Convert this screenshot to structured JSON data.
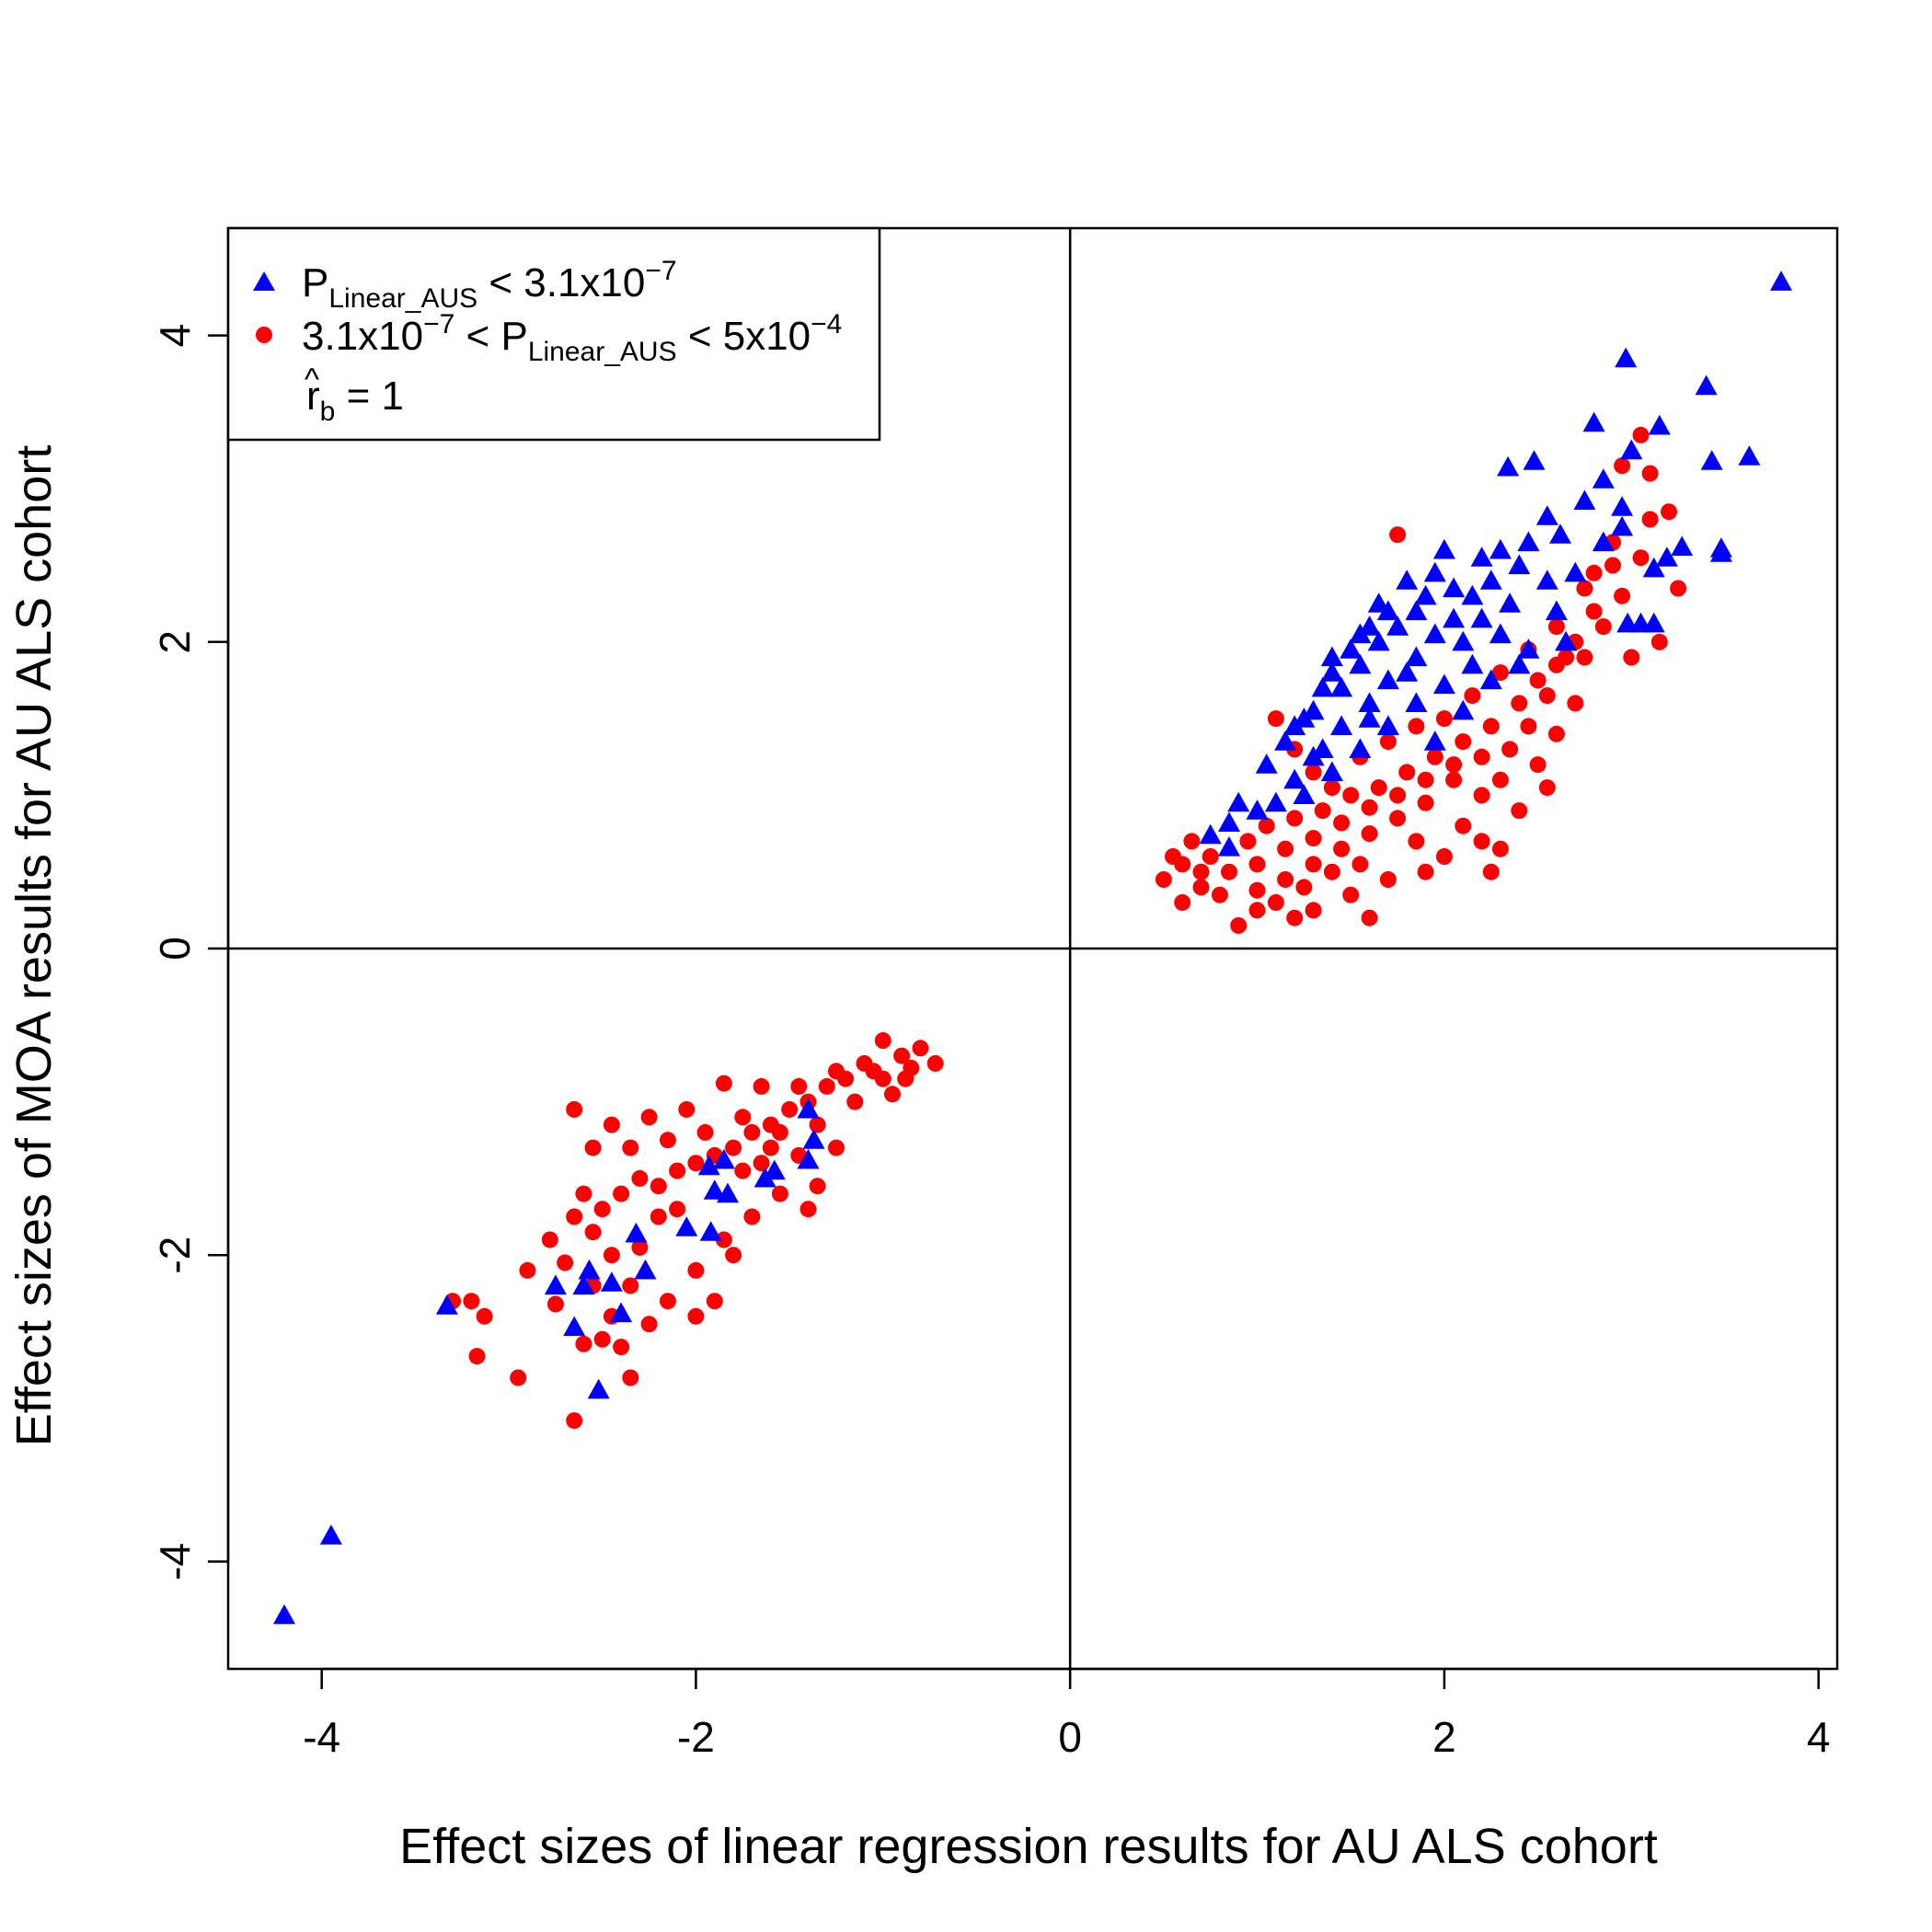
{
  "chart_data": {
    "type": "scatter",
    "xlabel": "Effect sizes of linear regression results for AU ALS cohort",
    "ylabel": "Effect sizes of MOA results for AU ALS cohort",
    "xlim": [
      -4.5,
      4.1
    ],
    "ylim": [
      -4.7,
      4.7
    ],
    "x_ticks": [
      "-4",
      "-2",
      "0",
      "2",
      "4"
    ],
    "y_ticks": [
      "-4",
      "-2",
      "0",
      "2",
      "4"
    ],
    "reference_lines": {
      "x": 0,
      "y": 0
    },
    "grid": false,
    "legend_position": "top-left",
    "legend": {
      "entry1": {
        "base": "P",
        "sub": "Linear_AUS",
        "rest": " < 3.1x10",
        "sup": "−7"
      },
      "entry2": {
        "pre": "3.1x10",
        "pre_sup": "−7",
        "mid": " < P",
        "sub": "Linear_AUS",
        "post": " < 5x10",
        "post_sup": "−4"
      },
      "entry3": {
        "hat": "^",
        "base": "r",
        "sub": "b",
        "rest": " = 1"
      }
    },
    "series": [
      {
        "marker": "triangle",
        "color": "#0000ff",
        "points": [
          [
            3.8,
            4.35
          ],
          [
            2.97,
            3.85
          ],
          [
            3.4,
            3.67
          ],
          [
            2.8,
            3.43
          ],
          [
            3.15,
            3.41
          ],
          [
            3.0,
            3.25
          ],
          [
            3.43,
            3.18
          ],
          [
            3.63,
            3.21
          ],
          [
            2.48,
            3.18
          ],
          [
            2.34,
            3.14
          ],
          [
            2.85,
            3.06
          ],
          [
            2.95,
            2.88
          ],
          [
            2.75,
            2.92
          ],
          [
            3.48,
            2.61
          ],
          [
            3.27,
            2.62
          ],
          [
            3.48,
            2.58
          ],
          [
            3.19,
            2.55
          ],
          [
            3.12,
            2.48
          ],
          [
            3.05,
            2.12
          ],
          [
            3.12,
            2.12
          ],
          [
            2.98,
            2.12
          ],
          [
            2.55,
            2.82
          ],
          [
            2.62,
            2.7
          ],
          [
            2.45,
            2.65
          ],
          [
            2.3,
            2.6
          ],
          [
            2.2,
            2.55
          ],
          [
            2.0,
            2.6
          ],
          [
            1.95,
            2.45
          ],
          [
            1.8,
            2.4
          ],
          [
            1.65,
            2.25
          ],
          [
            1.55,
            2.05
          ],
          [
            1.5,
            1.95
          ],
          [
            1.4,
            1.8
          ],
          [
            1.35,
            1.7
          ],
          [
            1.25,
            1.5
          ],
          [
            1.15,
            1.35
          ],
          [
            1.05,
            1.2
          ],
          [
            0.9,
            0.95
          ],
          [
            0.85,
            0.82
          ],
          [
            0.75,
            0.74
          ],
          [
            0.85,
            0.66
          ],
          [
            1.0,
            0.9
          ],
          [
            1.2,
            1.1
          ],
          [
            1.3,
            1.25
          ],
          [
            1.45,
            1.45
          ],
          [
            1.6,
            1.6
          ],
          [
            1.7,
            1.75
          ],
          [
            1.85,
            1.9
          ],
          [
            1.95,
            2.05
          ],
          [
            2.05,
            2.15
          ],
          [
            2.15,
            2.3
          ],
          [
            2.25,
            2.4
          ],
          [
            2.4,
            2.5
          ],
          [
            2.55,
            2.4
          ],
          [
            2.6,
            2.2
          ],
          [
            2.65,
            2.0
          ],
          [
            2.45,
            1.95
          ],
          [
            2.3,
            2.05
          ],
          [
            2.15,
            1.85
          ],
          [
            2.0,
            1.72
          ],
          [
            1.85,
            1.6
          ],
          [
            1.7,
            1.45
          ],
          [
            1.55,
            1.3
          ],
          [
            1.4,
            1.15
          ],
          [
            1.25,
            1.0
          ],
          [
            1.1,
            0.95
          ],
          [
            1.55,
            1.85
          ],
          [
            1.65,
            2.0
          ],
          [
            1.75,
            2.1
          ],
          [
            1.85,
            2.2
          ],
          [
            2.05,
            2.35
          ],
          [
            1.3,
            1.55
          ],
          [
            1.2,
            1.45
          ],
          [
            1.45,
            1.7
          ],
          [
            1.95,
            1.35
          ],
          [
            2.1,
            1.55
          ],
          [
            2.25,
            1.75
          ],
          [
            2.4,
            1.85
          ],
          [
            2.7,
            2.45
          ],
          [
            2.85,
            2.65
          ],
          [
            2.95,
            2.75
          ],
          [
            1.35,
            1.3
          ],
          [
            1.6,
            1.5
          ],
          [
            1.8,
            1.8
          ],
          [
            1.9,
            2.3
          ],
          [
            1.7,
            2.2
          ],
          [
            1.6,
            2.1
          ],
          [
            1.4,
            1.9
          ],
          [
            2.1,
            2.0
          ],
          [
            2.2,
            2.15
          ],
          [
            2.35,
            2.25
          ],
          [
            -4.2,
            -4.35
          ],
          [
            -3.95,
            -3.83
          ],
          [
            -3.33,
            -2.33
          ],
          [
            -2.52,
            -2.88
          ],
          [
            -2.65,
            -2.47
          ],
          [
            -2.57,
            -2.1
          ],
          [
            -2.45,
            -2.18
          ],
          [
            -2.4,
            -2.38
          ],
          [
            -2.27,
            -2.1
          ],
          [
            -2.32,
            -1.86
          ],
          [
            -2.05,
            -1.82
          ],
          [
            -1.92,
            -1.85
          ],
          [
            -1.9,
            -1.58
          ],
          [
            -1.83,
            -1.6
          ],
          [
            -1.93,
            -1.42
          ],
          [
            -1.85,
            -1.38
          ],
          [
            -1.63,
            -1.5
          ],
          [
            -1.58,
            -1.45
          ],
          [
            -1.4,
            -1.38
          ],
          [
            -1.37,
            -1.25
          ],
          [
            -1.4,
            -1.05
          ],
          [
            -2.6,
            -2.2
          ],
          [
            -2.75,
            -2.2
          ]
        ]
      },
      {
        "marker": "circle",
        "color": "#ff0000",
        "points": [
          [
            0.5,
            0.45
          ],
          [
            0.6,
            0.55
          ],
          [
            0.7,
            0.4
          ],
          [
            0.8,
            0.35
          ],
          [
            0.9,
            0.15
          ],
          [
            1.0,
            0.25
          ],
          [
            1.1,
            0.3
          ],
          [
            1.2,
            0.2
          ],
          [
            1.3,
            0.25
          ],
          [
            1.5,
            0.35
          ],
          [
            1.6,
            0.2
          ],
          [
            1.7,
            0.45
          ],
          [
            1.9,
            0.5
          ],
          [
            2.0,
            0.6
          ],
          [
            2.25,
            0.5
          ],
          [
            2.1,
            0.8
          ],
          [
            2.2,
            1.0
          ],
          [
            2.3,
            1.1
          ],
          [
            2.5,
            1.2
          ],
          [
            2.6,
            1.4
          ],
          [
            2.7,
            1.6
          ],
          [
            2.75,
            1.9
          ],
          [
            2.85,
            2.1
          ],
          [
            2.95,
            2.3
          ],
          [
            3.05,
            2.55
          ],
          [
            3.1,
            2.8
          ],
          [
            3.2,
            2.85
          ],
          [
            3.1,
            3.1
          ],
          [
            3.05,
            3.35
          ],
          [
            2.95,
            3.15
          ],
          [
            2.9,
            2.5
          ],
          [
            2.8,
            2.2
          ],
          [
            2.65,
            1.9
          ],
          [
            2.55,
            1.65
          ],
          [
            2.45,
            1.45
          ],
          [
            2.35,
            1.3
          ],
          [
            2.2,
            1.25
          ],
          [
            2.05,
            1.1
          ],
          [
            1.9,
            0.95
          ],
          [
            1.75,
            0.85
          ],
          [
            1.6,
            0.75
          ],
          [
            1.45,
            0.65
          ],
          [
            1.3,
            0.55
          ],
          [
            1.15,
            0.45
          ],
          [
            1.0,
            0.38
          ],
          [
            0.85,
            0.5
          ],
          [
            0.75,
            0.6
          ],
          [
            0.65,
            0.7
          ],
          [
            0.55,
            0.6
          ],
          [
            0.95,
            0.7
          ],
          [
            1.05,
            0.8
          ],
          [
            1.2,
            0.85
          ],
          [
            1.35,
            0.9
          ],
          [
            1.5,
            1.0
          ],
          [
            1.65,
            1.05
          ],
          [
            1.8,
            1.15
          ],
          [
            1.95,
            1.25
          ],
          [
            2.1,
            1.35
          ],
          [
            2.25,
            1.45
          ],
          [
            2.4,
            1.6
          ],
          [
            2.5,
            1.75
          ],
          [
            2.6,
            1.85
          ],
          [
            2.7,
            2.0
          ],
          [
            2.8,
            2.45
          ],
          [
            2.9,
            2.65
          ],
          [
            1.75,
            2.7
          ],
          [
            1.1,
            1.5
          ],
          [
            1.2,
            1.3
          ],
          [
            1.3,
            1.15
          ],
          [
            1.4,
            1.05
          ],
          [
            1.55,
            1.25
          ],
          [
            1.7,
            1.35
          ],
          [
            1.85,
            1.45
          ],
          [
            2.0,
            1.5
          ],
          [
            2.15,
            1.65
          ],
          [
            2.3,
            1.8
          ],
          [
            2.45,
            1.95
          ],
          [
            2.6,
            2.1
          ],
          [
            2.75,
            2.35
          ],
          [
            1.0,
            0.55
          ],
          [
            1.15,
            0.65
          ],
          [
            1.3,
            0.72
          ],
          [
            1.45,
            0.82
          ],
          [
            1.6,
            0.92
          ],
          [
            1.75,
            1.0
          ],
          [
            1.9,
            1.1
          ],
          [
            2.05,
            1.2
          ],
          [
            2.2,
            0.7
          ],
          [
            2.4,
            0.9
          ],
          [
            2.55,
            1.05
          ],
          [
            3.25,
            2.35
          ],
          [
            3.15,
            2.0
          ],
          [
            3.0,
            1.9
          ],
          [
            0.6,
            0.3
          ],
          [
            0.7,
            0.5
          ],
          [
            1.25,
            0.4
          ],
          [
            1.4,
            0.5
          ],
          [
            1.55,
            0.55
          ],
          [
            1.85,
            0.7
          ],
          [
            2.3,
            0.65
          ],
          [
            -3.3,
            -2.3
          ],
          [
            -3.2,
            -2.3
          ],
          [
            -3.13,
            -2.4
          ],
          [
            -3.17,
            -2.66
          ],
          [
            -2.95,
            -2.8
          ],
          [
            -2.65,
            -3.08
          ],
          [
            -2.6,
            -2.58
          ],
          [
            -2.5,
            -2.55
          ],
          [
            -2.45,
            -2.4
          ],
          [
            -2.35,
            -2.8
          ],
          [
            -2.75,
            -2.32
          ],
          [
            -2.7,
            -2.05
          ],
          [
            -2.78,
            -1.9
          ],
          [
            -2.9,
            -2.1
          ],
          [
            -2.55,
            -1.85
          ],
          [
            -2.6,
            -1.6
          ],
          [
            -2.5,
            -1.7
          ],
          [
            -2.4,
            -1.6
          ],
          [
            -2.3,
            -1.5
          ],
          [
            -2.2,
            -1.55
          ],
          [
            -2.1,
            -1.45
          ],
          [
            -2.0,
            -1.4
          ],
          [
            -1.9,
            -1.35
          ],
          [
            -1.8,
            -1.3
          ],
          [
            -1.7,
            -1.2
          ],
          [
            -1.6,
            -1.15
          ],
          [
            -1.5,
            -1.05
          ],
          [
            -1.4,
            -1.0
          ],
          [
            -1.3,
            -0.9
          ],
          [
            -1.2,
            -0.85
          ],
          [
            -1.1,
            -0.75
          ],
          [
            -1.0,
            -0.6
          ],
          [
            -0.9,
            -0.7
          ],
          [
            -0.8,
            -0.65
          ],
          [
            -0.72,
            -0.75
          ],
          [
            -0.88,
            -0.85
          ],
          [
            -0.95,
            -0.95
          ],
          [
            -1.05,
            -0.8
          ],
          [
            -1.25,
            -0.8
          ],
          [
            -1.45,
            -0.9
          ],
          [
            -1.65,
            -0.9
          ],
          [
            -1.85,
            -0.88
          ],
          [
            -2.05,
            -1.05
          ],
          [
            -2.25,
            -1.1
          ],
          [
            -2.45,
            -1.15
          ],
          [
            -2.65,
            -1.05
          ],
          [
            -2.55,
            -1.3
          ],
          [
            -2.35,
            -1.3
          ],
          [
            -2.15,
            -1.25
          ],
          [
            -1.95,
            -1.2
          ],
          [
            -1.75,
            -1.1
          ],
          [
            -1.55,
            -1.2
          ],
          [
            -1.35,
            -1.15
          ],
          [
            -1.25,
            -1.3
          ],
          [
            -1.35,
            -1.55
          ],
          [
            -1.4,
            -1.7
          ],
          [
            -1.55,
            -1.6
          ],
          [
            -1.7,
            -1.75
          ],
          [
            -1.85,
            -1.9
          ],
          [
            -2.0,
            -2.1
          ],
          [
            -2.15,
            -2.3
          ],
          [
            -2.25,
            -2.45
          ],
          [
            -2.4,
            -2.6
          ],
          [
            -1.9,
            -2.3
          ],
          [
            -2.0,
            -2.4
          ],
          [
            -1.8,
            -2.0
          ],
          [
            -1.65,
            -1.4
          ],
          [
            -1.45,
            -1.35
          ],
          [
            -2.45,
            -2.0
          ],
          [
            -2.3,
            -1.95
          ],
          [
            -2.2,
            -1.75
          ],
          [
            -2.1,
            -1.7
          ],
          [
            -2.65,
            -1.75
          ],
          [
            -2.55,
            -2.2
          ],
          [
            -2.35,
            -2.2
          ],
          [
            -1.15,
            -1.0
          ],
          [
            -1.0,
            -0.85
          ],
          [
            -0.85,
            -0.78
          ],
          [
            -1.6,
            -1.3
          ],
          [
            -1.75,
            -1.45
          ]
        ]
      }
    ]
  }
}
